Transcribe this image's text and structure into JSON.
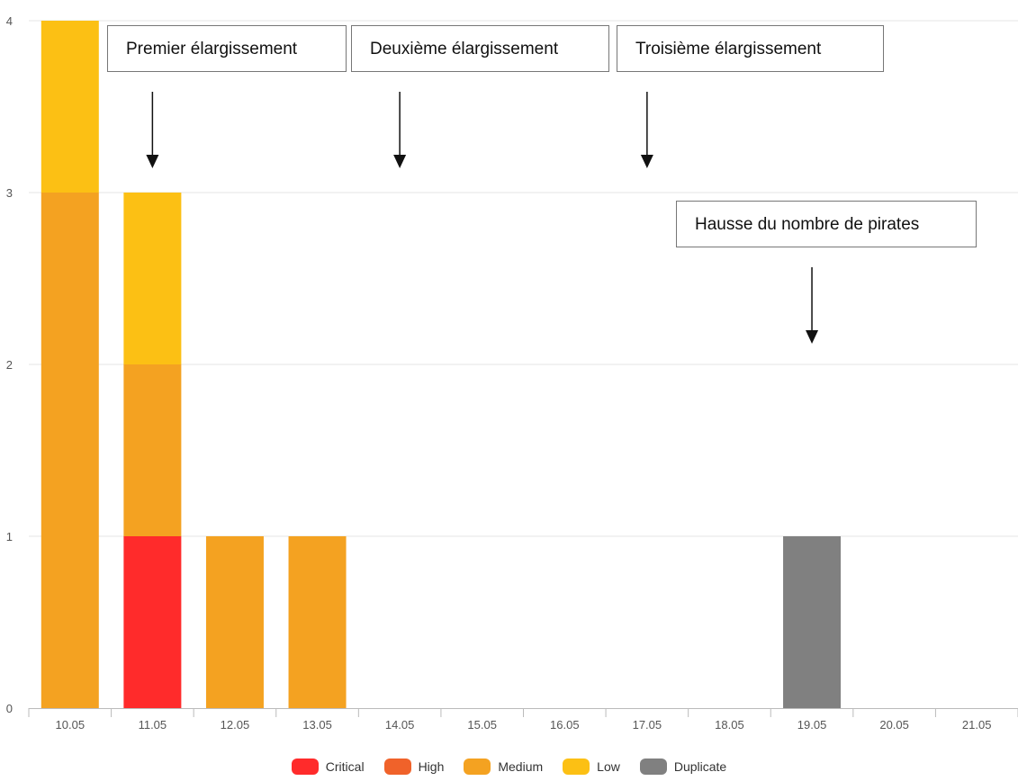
{
  "chart_data": {
    "type": "bar",
    "stacked": true,
    "categories": [
      "10.05",
      "11.05",
      "12.05",
      "13.05",
      "14.05",
      "15.05",
      "16.05",
      "17.05",
      "18.05",
      "19.05",
      "20.05",
      "21.05"
    ],
    "series": [
      {
        "name": "Critical",
        "color": "#ff2b2b",
        "values": [
          0,
          1,
          0,
          0,
          0,
          0,
          0,
          0,
          0,
          0,
          0,
          0
        ]
      },
      {
        "name": "High",
        "color": "#f0622a",
        "values": [
          0,
          0,
          0,
          0,
          0,
          0,
          0,
          0,
          0,
          0,
          0,
          0
        ]
      },
      {
        "name": "Medium",
        "color": "#f4a221",
        "values": [
          3,
          1,
          1,
          1,
          0,
          0,
          0,
          0,
          0,
          0,
          0,
          0
        ]
      },
      {
        "name": "Low",
        "color": "#fcc014",
        "values": [
          1,
          1,
          0,
          0,
          0,
          0,
          0,
          0,
          0,
          0,
          0,
          0
        ]
      },
      {
        "name": "Duplicate",
        "color": "#808080",
        "values": [
          0,
          0,
          0,
          0,
          0,
          0,
          0,
          0,
          0,
          1,
          0,
          0
        ]
      }
    ],
    "ylim": [
      0,
      4
    ],
    "yticks": [
      0,
      1,
      2,
      3,
      4
    ],
    "grid": true,
    "legend_position": "bottom",
    "title": "",
    "xlabel": "",
    "ylabel": ""
  },
  "annotations": [
    {
      "text": "Premier élargissement",
      "category": "11.05"
    },
    {
      "text": "Deuxième élargissement",
      "category": "14.05"
    },
    {
      "text": "Troisième élargissement",
      "category": "17.05"
    },
    {
      "text": "Hausse du nombre de pirates",
      "category": "19.05"
    }
  ]
}
